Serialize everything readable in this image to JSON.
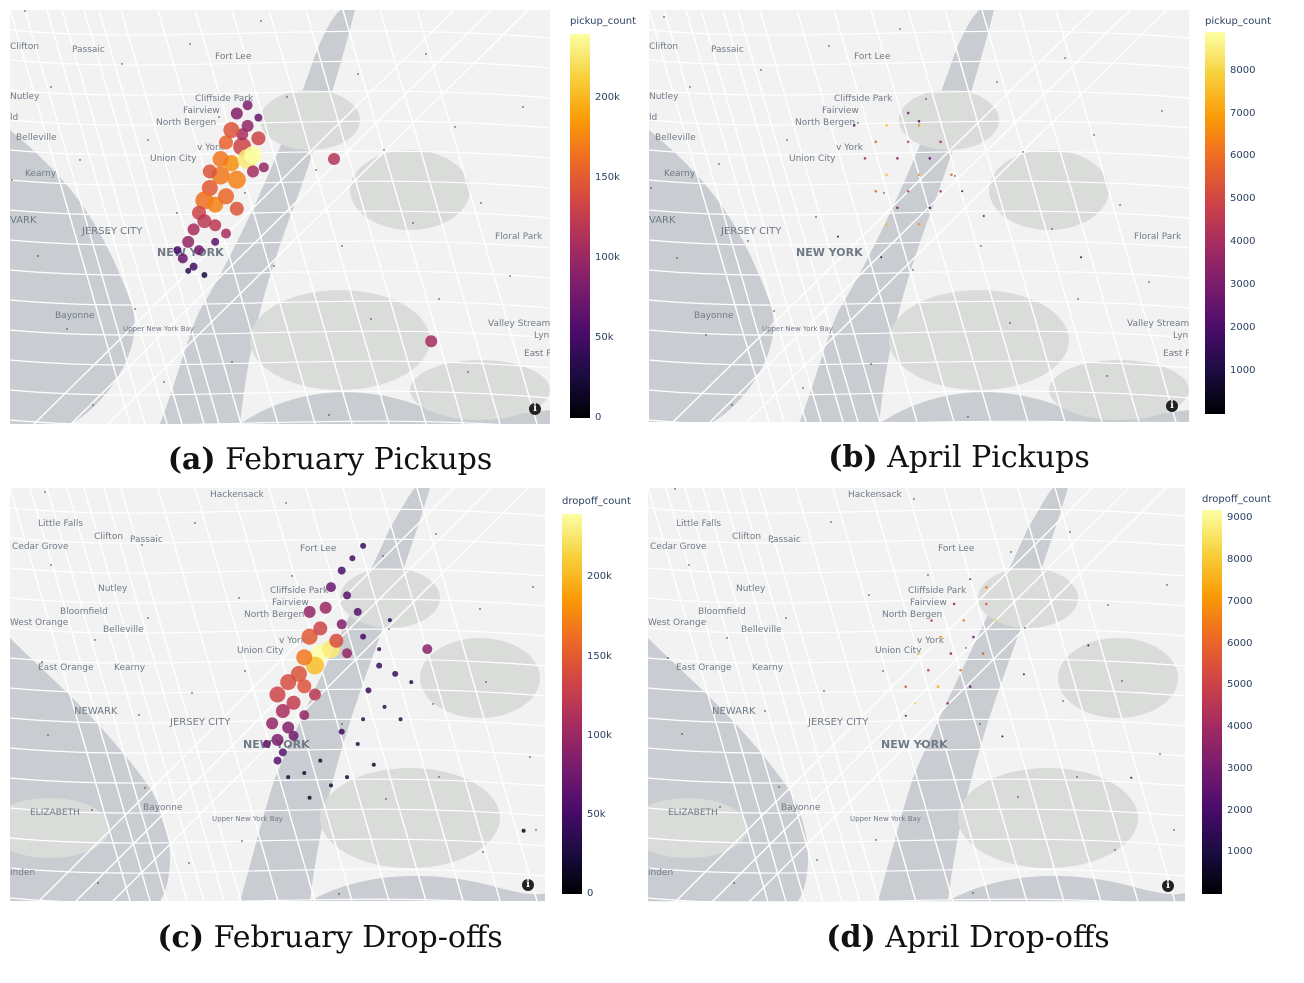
{
  "colorscale": [
    "#000004",
    "#1b0c41",
    "#4a0c6b",
    "#781c6d",
    "#a52c60",
    "#cf4446",
    "#ed6925",
    "#fb9b06",
    "#f7d13d",
    "#fcffa4"
  ],
  "map_colors": {
    "land": "#f2f2f2",
    "water": "#c9cdd1",
    "park": "#d9dcd9",
    "road": "#ffffff"
  },
  "map_labels": [
    {
      "text": "Clifton"
    },
    {
      "text": "Passaic"
    },
    {
      "text": "Fort Lee"
    },
    {
      "text": "Nutley"
    },
    {
      "text": "Cliffside Park"
    },
    {
      "text": "Fairview"
    },
    {
      "text": "North Bergen"
    },
    {
      "text": "Belleville"
    },
    {
      "text": "Union City"
    },
    {
      "text": "Kearny"
    },
    {
      "text": "JERSEY CITY"
    },
    {
      "text": "NEW YORK"
    },
    {
      "text": "Floral Park"
    },
    {
      "text": "Bayonne"
    },
    {
      "text": "Valley Stream"
    },
    {
      "text": "Lynb"
    },
    {
      "text": "East R"
    },
    {
      "text": "Upper New York Bay"
    },
    {
      "text": "v York"
    },
    {
      "text": "VARK"
    },
    {
      "text": "ld"
    },
    {
      "text": "Little Falls"
    },
    {
      "text": "Cedar Grove"
    },
    {
      "text": "Bloomfield"
    },
    {
      "text": "West Orange"
    },
    {
      "text": "East Orange"
    },
    {
      "text": "NEWARK"
    },
    {
      "text": "ELIZABETH"
    },
    {
      "text": "Hackensack"
    },
    {
      "text": "inden"
    }
  ],
  "panels": [
    {
      "caption_letter": "(a)",
      "caption_text": "February Pickups",
      "colorbar": {
        "title": "pickup_count",
        "min": 0,
        "max": 240000,
        "ticks": [
          {
            "v": 0,
            "label": "0"
          },
          {
            "v": 50000,
            "label": "50k"
          },
          {
            "v": 100000,
            "label": "100k"
          },
          {
            "v": 150000,
            "label": "150k"
          },
          {
            "v": 200000,
            "label": "200k"
          }
        ]
      }
    },
    {
      "caption_letter": "(b)",
      "caption_text": "April Pickups",
      "colorbar": {
        "title": "pickup_count",
        "min": 0,
        "max": 8900,
        "ticks": [
          {
            "v": 1000,
            "label": "1000"
          },
          {
            "v": 2000,
            "label": "2000"
          },
          {
            "v": 3000,
            "label": "3000"
          },
          {
            "v": 4000,
            "label": "4000"
          },
          {
            "v": 5000,
            "label": "5000"
          },
          {
            "v": 6000,
            "label": "6000"
          },
          {
            "v": 7000,
            "label": "7000"
          },
          {
            "v": 8000,
            "label": "8000"
          }
        ]
      }
    },
    {
      "caption_letter": "(c)",
      "caption_text": "February Drop-offs",
      "colorbar": {
        "title": "dropoff_count",
        "min": 0,
        "max": 240000,
        "ticks": [
          {
            "v": 0,
            "label": "0"
          },
          {
            "v": 50000,
            "label": "50k"
          },
          {
            "v": 100000,
            "label": "100k"
          },
          {
            "v": 150000,
            "label": "150k"
          },
          {
            "v": 200000,
            "label": "200k"
          }
        ]
      }
    },
    {
      "caption_letter": "(d)",
      "caption_text": "April Drop-offs",
      "colorbar": {
        "title": "dropoff_count",
        "min": 0,
        "max": 9200,
        "ticks": [
          {
            "v": 1000,
            "label": "1000"
          },
          {
            "v": 2000,
            "label": "2000"
          },
          {
            "v": 3000,
            "label": "3000"
          },
          {
            "v": 4000,
            "label": "4000"
          },
          {
            "v": 5000,
            "label": "5000"
          },
          {
            "v": 6000,
            "label": "6000"
          },
          {
            "v": 7000,
            "label": "7000"
          },
          {
            "v": 8000,
            "label": "8000"
          },
          {
            "v": 9000,
            "label": "9000"
          }
        ]
      }
    }
  ]
}
